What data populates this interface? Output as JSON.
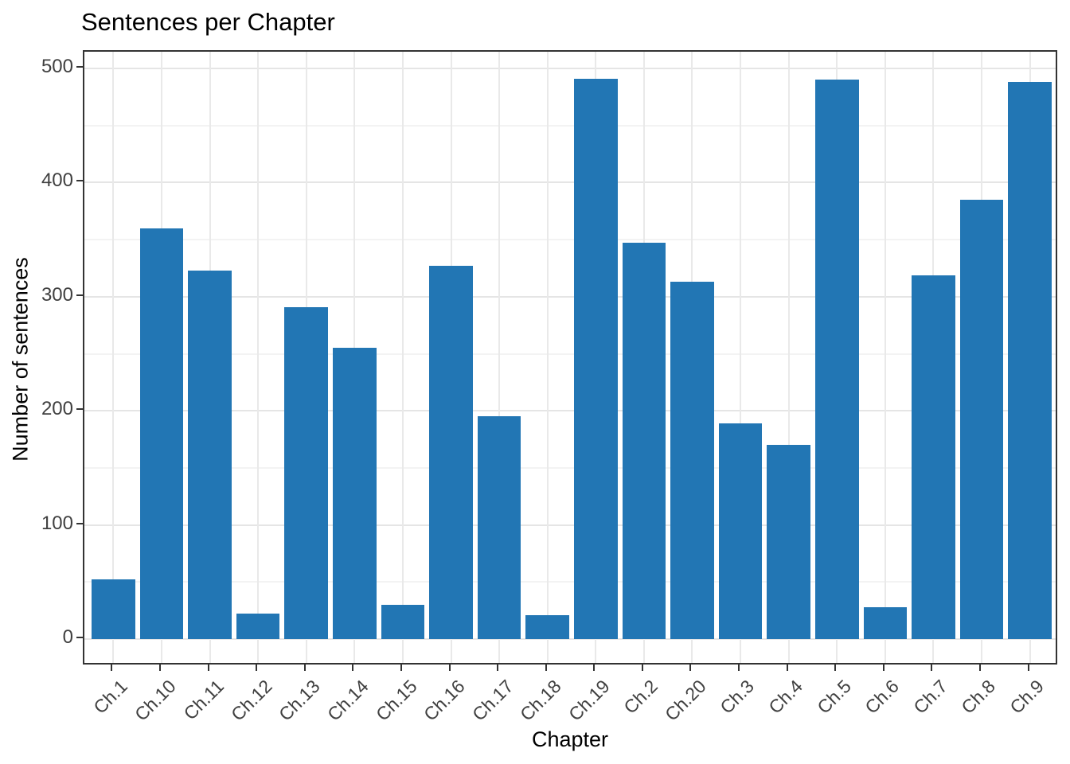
{
  "chart_data": {
    "type": "bar",
    "title": "Sentences per Chapter",
    "xlabel": "Chapter",
    "ylabel": "Number of sentences",
    "categories": [
      "Ch.1",
      "Ch.10",
      "Ch.11",
      "Ch.12",
      "Ch.13",
      "Ch.14",
      "Ch.15",
      "Ch.16",
      "Ch.17",
      "Ch.18",
      "Ch.19",
      "Ch.2",
      "Ch.20",
      "Ch.3",
      "Ch.4",
      "Ch.5",
      "Ch.6",
      "Ch.7",
      "Ch.8",
      "Ch.9"
    ],
    "values": [
      52,
      360,
      323,
      22,
      291,
      255,
      30,
      327,
      195,
      21,
      491,
      347,
      313,
      189,
      170,
      490,
      28,
      319,
      385,
      488
    ],
    "ylim": [
      0,
      500
    ],
    "yticks": [
      0,
      100,
      200,
      300,
      400,
      500
    ],
    "yticks_minor": [
      50,
      150,
      250,
      350,
      450
    ],
    "grid": "horizontal major+minor, vertical major at category centers",
    "legend": "none",
    "bar_color": "#2276b4",
    "bar_width_fraction": 0.9
  }
}
